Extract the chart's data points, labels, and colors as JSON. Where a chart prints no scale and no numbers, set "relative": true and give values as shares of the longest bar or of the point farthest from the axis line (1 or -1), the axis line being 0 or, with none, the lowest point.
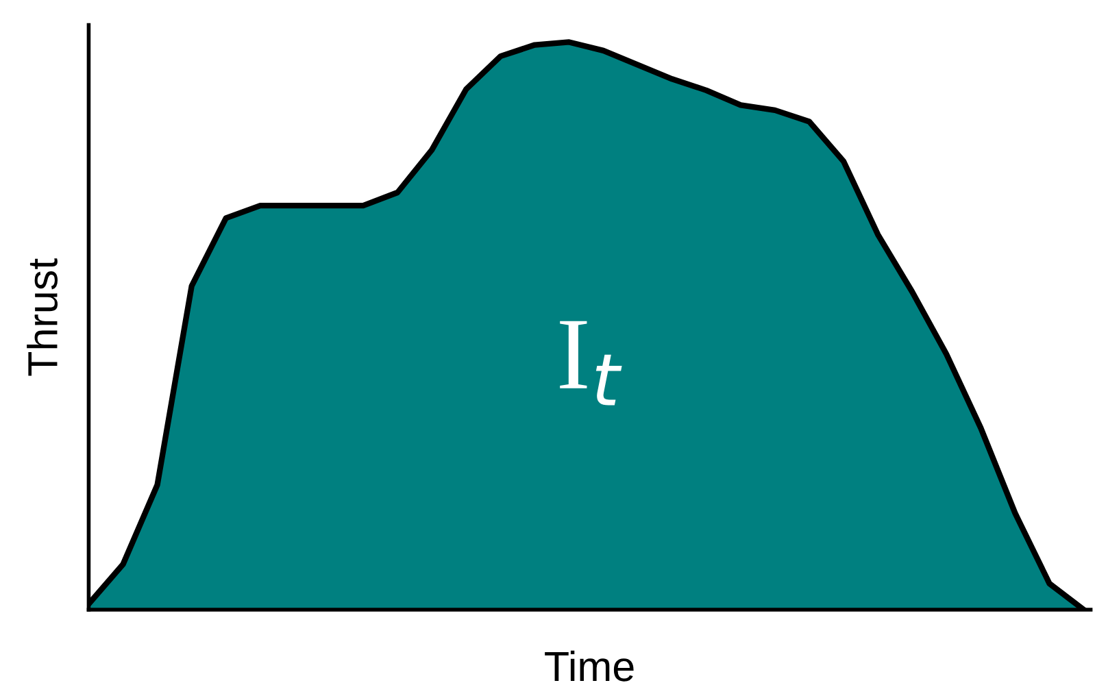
{
  "chart_data": {
    "type": "area",
    "relative": true,
    "xlabel": "Time",
    "ylabel": "Thrust",
    "categories": [
      null,
      null,
      null,
      null,
      null,
      null,
      null,
      null,
      null,
      null,
      null,
      null,
      null,
      null,
      null,
      null,
      null,
      null,
      null,
      null,
      null,
      null,
      null,
      null,
      null,
      null,
      null,
      null,
      null,
      null
    ],
    "series": [
      {
        "color": "#008080",
        "values": [
          0.01,
          0.08,
          0.22,
          0.57,
          0.69,
          0.712,
          0.712,
          0.712,
          0.712,
          0.735,
          0.81,
          0.917,
          0.975,
          0.995,
          1.0,
          0.985,
          0.96,
          0.935,
          0.915,
          0.889,
          0.88,
          0.86,
          0.79,
          0.661,
          0.56,
          0.45,
          0.32,
          0.17,
          0.046,
          0.0
        ]
      }
    ],
    "annotations": [
      "I$_{t}$"
    ],
    "grid": false,
    "legend": false
  }
}
